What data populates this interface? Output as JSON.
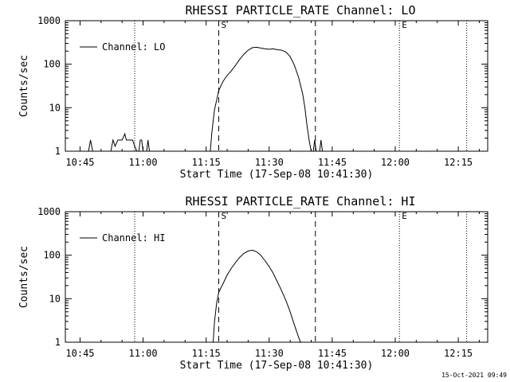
{
  "footer": {
    "timestamp": "15-Oct-2021 09:49"
  },
  "chart_data": [
    {
      "type": "line",
      "title": "RHESSI PARTICLE_RATE Channel: LO",
      "xlabel": "Start Time (17-Sep-08 10:41:30)",
      "ylabel": "Counts/sec",
      "y_scale": "log",
      "ylim": [
        1,
        1000
      ],
      "xlim": [
        "10:41:30",
        "12:22:00"
      ],
      "x_ticks": [
        "10:45",
        "11:00",
        "11:15",
        "11:30",
        "11:45",
        "12:00",
        "12:15"
      ],
      "y_ticks": [
        "1",
        "10",
        "100",
        "1000"
      ],
      "legend": {
        "position": "top-left",
        "entries": [
          "Channel: LO"
        ]
      },
      "markers": [
        {
          "label": "S",
          "time": "11:18",
          "style": "dashed"
        },
        {
          "label": "",
          "time": "11:41",
          "style": "dashed"
        },
        {
          "label": "",
          "time": "10:58",
          "style": "dotted"
        },
        {
          "label": "E",
          "time": "12:01",
          "style": "dotted"
        },
        {
          "label": "",
          "time": "12:17",
          "style": "dotted"
        }
      ],
      "series": [
        {
          "name": "Channel: LO",
          "segments": [
            [
              [
                "10:47:00",
                1
              ],
              [
                "10:47:30",
                1.8
              ],
              [
                "10:48:00",
                1
              ]
            ],
            [
              [
                "10:52:20",
                1
              ],
              [
                "10:52:50",
                1.8
              ],
              [
                "10:53:20",
                1.3
              ],
              [
                "10:54:00",
                1.8
              ],
              [
                "10:55:00",
                1.8
              ],
              [
                "10:55:40",
                2.5
              ],
              [
                "10:56:00",
                1.8
              ],
              [
                "10:57:30",
                1.8
              ],
              [
                "10:58:00",
                1.3
              ],
              [
                "10:58:30",
                1
              ]
            ],
            [
              [
                "10:59:00",
                1
              ],
              [
                "10:59:20",
                1.8
              ],
              [
                "10:59:40",
                1.8
              ],
              [
                "11:00:00",
                1
              ]
            ],
            [
              [
                "11:00:50",
                1
              ],
              [
                "11:01:10",
                1.8
              ],
              [
                "11:01:30",
                1
              ]
            ],
            [
              [
                "11:16:00",
                1
              ],
              [
                "11:16:20",
                2.5
              ],
              [
                "11:16:40",
                5
              ],
              [
                "11:17:00",
                9
              ],
              [
                "11:17:30",
                15
              ],
              [
                "11:18:00",
                25
              ],
              [
                "11:19:00",
                40
              ],
              [
                "11:20:00",
                55
              ],
              [
                "11:21:00",
                70
              ],
              [
                "11:22:00",
                95
              ],
              [
                "11:23:00",
                130
              ],
              [
                "11:24:00",
                170
              ],
              [
                "11:25:00",
                210
              ],
              [
                "11:26:00",
                240
              ],
              [
                "11:27:00",
                245
              ],
              [
                "11:28:00",
                235
              ],
              [
                "11:29:00",
                225
              ],
              [
                "11:30:00",
                220
              ],
              [
                "11:31:00",
                225
              ],
              [
                "11:32:00",
                215
              ],
              [
                "11:33:00",
                210
              ],
              [
                "11:34:00",
                190
              ],
              [
                "11:35:00",
                150
              ],
              [
                "11:36:00",
                95
              ],
              [
                "11:37:00",
                50
              ],
              [
                "11:38:00",
                20
              ],
              [
                "11:38:30",
                10
              ],
              [
                "11:39:00",
                4
              ],
              [
                "11:39:30",
                1.8
              ],
              [
                "11:40:00",
                1
              ]
            ],
            [
              [
                "11:40:30",
                1
              ],
              [
                "11:40:50",
                1.8
              ],
              [
                "11:41:10",
                1
              ]
            ],
            [
              [
                "11:42:00",
                1
              ],
              [
                "11:42:20",
                1.8
              ],
              [
                "11:42:40",
                1
              ]
            ]
          ]
        }
      ]
    },
    {
      "type": "line",
      "title": "RHESSI PARTICLE_RATE Channel: HI",
      "xlabel": "Start Time (17-Sep-08 10:41:30)",
      "ylabel": "Counts/sec",
      "y_scale": "log",
      "ylim": [
        1,
        1000
      ],
      "xlim": [
        "10:41:30",
        "12:22:00"
      ],
      "x_ticks": [
        "10:45",
        "11:00",
        "11:15",
        "11:30",
        "11:45",
        "12:00",
        "12:15"
      ],
      "y_ticks": [
        "1",
        "10",
        "100",
        "1000"
      ],
      "legend": {
        "position": "top-left",
        "entries": [
          "Channel: HI"
        ]
      },
      "markers": [
        {
          "label": "S",
          "time": "11:18",
          "style": "dashed"
        },
        {
          "label": "",
          "time": "11:41",
          "style": "dashed"
        },
        {
          "label": "",
          "time": "10:58",
          "style": "dotted"
        },
        {
          "label": "E",
          "time": "12:01",
          "style": "dotted"
        },
        {
          "label": "",
          "time": "12:17",
          "style": "dotted"
        }
      ],
      "series": [
        {
          "name": "Channel: HI",
          "segments": [
            [
              [
                "11:16:40",
                1
              ],
              [
                "11:17:00",
                3
              ],
              [
                "11:17:30",
                8
              ],
              [
                "11:18:00",
                14
              ],
              [
                "11:19:00",
                22
              ],
              [
                "11:20:00",
                35
              ],
              [
                "11:21:00",
                50
              ],
              [
                "11:22:00",
                68
              ],
              [
                "11:23:00",
                90
              ],
              [
                "11:24:00",
                110
              ],
              [
                "11:25:00",
                125
              ],
              [
                "11:26:00",
                130
              ],
              [
                "11:27:00",
                120
              ],
              [
                "11:28:00",
                100
              ],
              [
                "11:29:00",
                75
              ],
              [
                "11:30:00",
                55
              ],
              [
                "11:31:00",
                38
              ],
              [
                "11:32:00",
                24
              ],
              [
                "11:33:00",
                15
              ],
              [
                "11:34:00",
                9
              ],
              [
                "11:35:00",
                5
              ],
              [
                "11:36:00",
                2.5
              ],
              [
                "11:37:00",
                1.3
              ],
              [
                "11:37:30",
                1
              ]
            ]
          ]
        }
      ]
    }
  ]
}
